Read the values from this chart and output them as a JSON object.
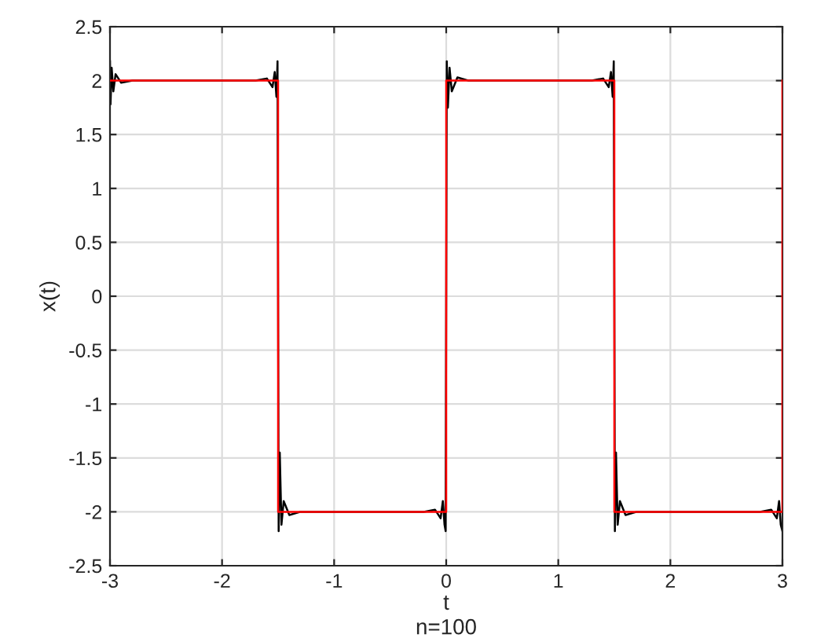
{
  "chart_data": {
    "type": "line",
    "xlabel": "t",
    "ylabel": "x(t)",
    "annotations": [
      "n=100"
    ],
    "xlim": [
      -3,
      3
    ],
    "xticks": [
      -3,
      -2,
      -1,
      0,
      1,
      2,
      3
    ],
    "ylim": [
      -2.5,
      2.5
    ],
    "yticks": [
      -2.5,
      -2,
      -1.5,
      -1,
      -0.5,
      0,
      0.5,
      1,
      1.5,
      2,
      2.5
    ],
    "grid": true,
    "series": [
      {
        "color": "#000000",
        "x": [
          -3,
          -2.995,
          -2.985,
          -2.97,
          -2.95,
          -2.9,
          -2.8,
          -1.7,
          -1.6,
          -1.55,
          -1.53,
          -1.515,
          -1.505,
          -1.5,
          -1.495,
          -1.485,
          -1.47,
          -1.45,
          -1.4,
          -1.3,
          -0.2,
          -0.1,
          -0.05,
          -0.03,
          -0.015,
          -0.005,
          0,
          0.005,
          0.015,
          0.03,
          0.05,
          0.1,
          0.2,
          1.3,
          1.4,
          1.45,
          1.47,
          1.485,
          1.495,
          1.5,
          1.505,
          1.515,
          1.53,
          1.55,
          1.6,
          1.7,
          2.8,
          2.9,
          2.95,
          2.97,
          2.985,
          3
        ],
        "values": [
          2.18,
          1.78,
          2.12,
          1.9,
          2.06,
          1.98,
          2.0,
          2.0,
          2.02,
          1.94,
          2.08,
          1.85,
          2.18,
          0,
          -2.18,
          -1.45,
          -2.12,
          -1.9,
          -2.03,
          -2.0,
          -2.0,
          -1.98,
          -2.06,
          -1.9,
          -2.12,
          -2.18,
          0,
          2.18,
          1.75,
          2.12,
          1.9,
          2.03,
          2.0,
          2.0,
          2.02,
          1.94,
          2.08,
          1.85,
          2.18,
          0,
          -2.18,
          -1.45,
          -2.12,
          -1.9,
          -2.03,
          -2.0,
          -2.0,
          -1.98,
          -2.06,
          -1.9,
          -2.12,
          -2.18
        ]
      },
      {
        "color": "#ff0000",
        "x": [
          -3,
          -1.5,
          -1.5,
          0,
          0,
          1.5,
          1.5,
          3,
          3
        ],
        "values": [
          2,
          2,
          -2,
          -2,
          2,
          2,
          -2,
          -2,
          2
        ]
      }
    ]
  }
}
